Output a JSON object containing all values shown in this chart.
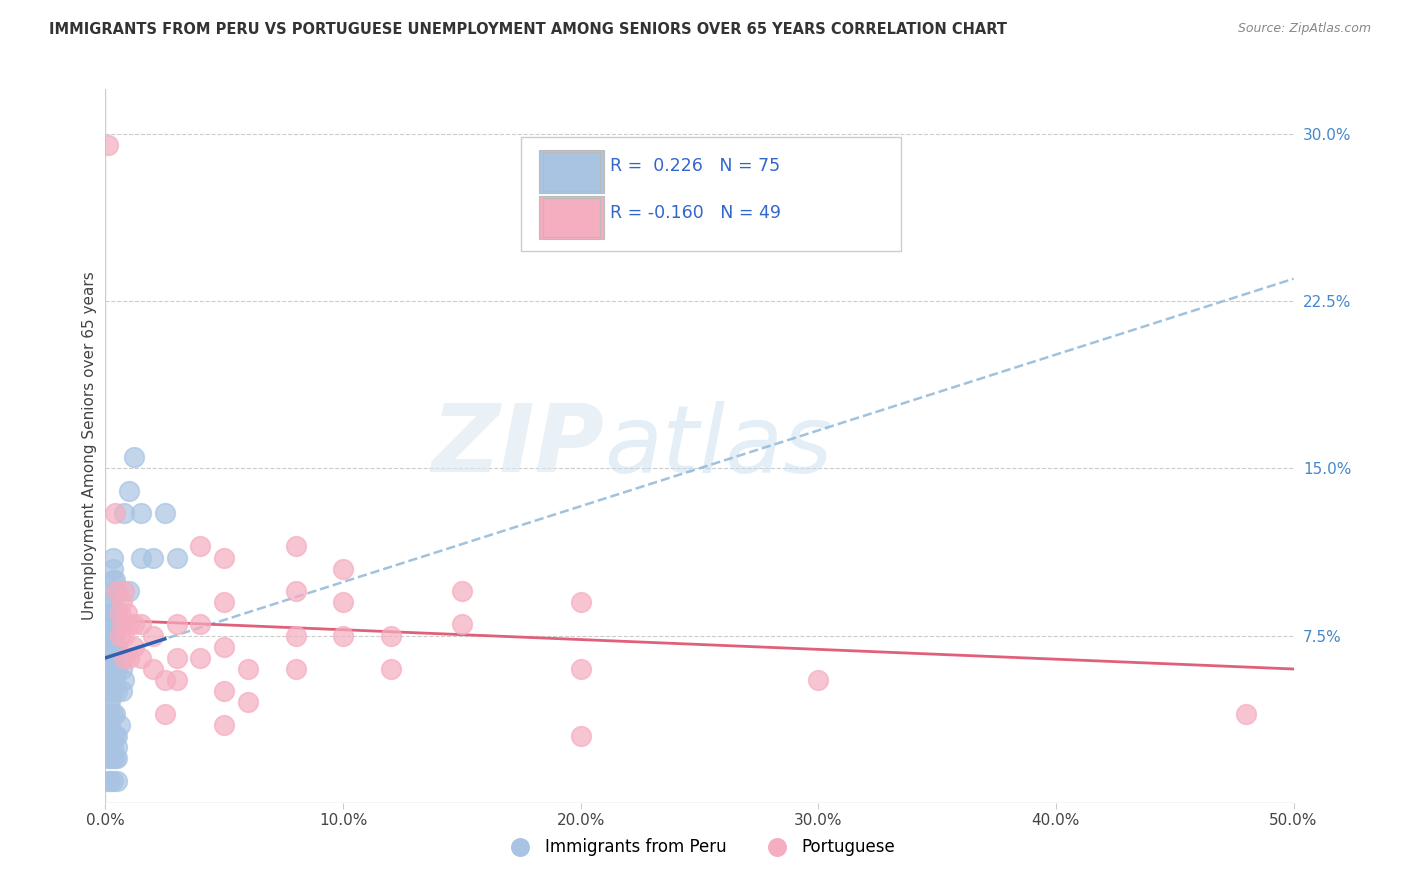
{
  "title": "IMMIGRANTS FROM PERU VS PORTUGUESE UNEMPLOYMENT AMONG SENIORS OVER 65 YEARS CORRELATION CHART",
  "source": "Source: ZipAtlas.com",
  "ylabel": "Unemployment Among Seniors over 65 years",
  "xlim": [
    0.0,
    0.5
  ],
  "ylim": [
    0.0,
    0.32
  ],
  "xtick_vals": [
    0.0,
    0.1,
    0.2,
    0.3,
    0.4,
    0.5
  ],
  "xticklabels": [
    "0.0%",
    "10.0%",
    "20.0%",
    "30.0%",
    "40.0%",
    "50.0%"
  ],
  "ytick_right_vals": [
    0.075,
    0.15,
    0.225,
    0.3
  ],
  "ytick_right_labels": [
    "7.5%",
    "15.0%",
    "22.5%",
    "30.0%"
  ],
  "grid_color": "#cccccc",
  "background_color": "#ffffff",
  "peru_color": "#a8c4e2",
  "portuguese_color": "#f5adc0",
  "peru_line_color": "#3060b0",
  "portuguese_line_color": "#e0607a",
  "peru_trendline_color": "#90b8d8",
  "peru_scatter": [
    [
      0.001,
      0.01
    ],
    [
      0.001,
      0.02
    ],
    [
      0.001,
      0.025
    ],
    [
      0.001,
      0.03
    ],
    [
      0.001,
      0.035
    ],
    [
      0.001,
      0.04
    ],
    [
      0.001,
      0.045
    ],
    [
      0.001,
      0.05
    ],
    [
      0.001,
      0.055
    ],
    [
      0.001,
      0.06
    ],
    [
      0.001,
      0.07
    ],
    [
      0.002,
      0.01
    ],
    [
      0.002,
      0.02
    ],
    [
      0.002,
      0.025
    ],
    [
      0.002,
      0.03
    ],
    [
      0.002,
      0.035
    ],
    [
      0.002,
      0.04
    ],
    [
      0.002,
      0.045
    ],
    [
      0.002,
      0.05
    ],
    [
      0.002,
      0.055
    ],
    [
      0.002,
      0.06
    ],
    [
      0.002,
      0.065
    ],
    [
      0.002,
      0.07
    ],
    [
      0.002,
      0.075
    ],
    [
      0.002,
      0.08
    ],
    [
      0.002,
      0.085
    ],
    [
      0.002,
      0.09
    ],
    [
      0.003,
      0.01
    ],
    [
      0.003,
      0.02
    ],
    [
      0.003,
      0.025
    ],
    [
      0.003,
      0.03
    ],
    [
      0.003,
      0.04
    ],
    [
      0.003,
      0.05
    ],
    [
      0.003,
      0.055
    ],
    [
      0.003,
      0.06
    ],
    [
      0.003,
      0.065
    ],
    [
      0.003,
      0.07
    ],
    [
      0.003,
      0.075
    ],
    [
      0.003,
      0.08
    ],
    [
      0.003,
      0.09
    ],
    [
      0.003,
      0.1
    ],
    [
      0.003,
      0.105
    ],
    [
      0.003,
      0.11
    ],
    [
      0.004,
      0.02
    ],
    [
      0.004,
      0.03
    ],
    [
      0.004,
      0.04
    ],
    [
      0.004,
      0.055
    ],
    [
      0.004,
      0.065
    ],
    [
      0.004,
      0.07
    ],
    [
      0.004,
      0.075
    ],
    [
      0.004,
      0.085
    ],
    [
      0.004,
      0.095
    ],
    [
      0.004,
      0.1
    ],
    [
      0.005,
      0.01
    ],
    [
      0.005,
      0.02
    ],
    [
      0.005,
      0.025
    ],
    [
      0.005,
      0.03
    ],
    [
      0.005,
      0.05
    ],
    [
      0.005,
      0.06
    ],
    [
      0.005,
      0.07
    ],
    [
      0.005,
      0.08
    ],
    [
      0.005,
      0.085
    ],
    [
      0.005,
      0.095
    ],
    [
      0.006,
      0.035
    ],
    [
      0.006,
      0.065
    ],
    [
      0.006,
      0.08
    ],
    [
      0.007,
      0.05
    ],
    [
      0.007,
      0.06
    ],
    [
      0.008,
      0.13
    ],
    [
      0.008,
      0.055
    ],
    [
      0.01,
      0.095
    ],
    [
      0.01,
      0.14
    ],
    [
      0.012,
      0.155
    ],
    [
      0.015,
      0.11
    ],
    [
      0.015,
      0.13
    ],
    [
      0.02,
      0.11
    ],
    [
      0.025,
      0.13
    ],
    [
      0.03,
      0.11
    ]
  ],
  "portuguese_scatter": [
    [
      0.001,
      0.295
    ],
    [
      0.004,
      0.13
    ],
    [
      0.005,
      0.095
    ],
    [
      0.006,
      0.085
    ],
    [
      0.006,
      0.075
    ],
    [
      0.007,
      0.09
    ],
    [
      0.007,
      0.08
    ],
    [
      0.008,
      0.095
    ],
    [
      0.008,
      0.075
    ],
    [
      0.008,
      0.065
    ],
    [
      0.009,
      0.085
    ],
    [
      0.01,
      0.08
    ],
    [
      0.01,
      0.065
    ],
    [
      0.012,
      0.08
    ],
    [
      0.012,
      0.07
    ],
    [
      0.015,
      0.08
    ],
    [
      0.015,
      0.065
    ],
    [
      0.02,
      0.075
    ],
    [
      0.02,
      0.06
    ],
    [
      0.025,
      0.055
    ],
    [
      0.025,
      0.04
    ],
    [
      0.03,
      0.08
    ],
    [
      0.03,
      0.065
    ],
    [
      0.03,
      0.055
    ],
    [
      0.04,
      0.115
    ],
    [
      0.04,
      0.08
    ],
    [
      0.04,
      0.065
    ],
    [
      0.05,
      0.11
    ],
    [
      0.05,
      0.09
    ],
    [
      0.05,
      0.07
    ],
    [
      0.05,
      0.05
    ],
    [
      0.05,
      0.035
    ],
    [
      0.06,
      0.06
    ],
    [
      0.06,
      0.045
    ],
    [
      0.08,
      0.115
    ],
    [
      0.08,
      0.095
    ],
    [
      0.08,
      0.075
    ],
    [
      0.08,
      0.06
    ],
    [
      0.1,
      0.105
    ],
    [
      0.1,
      0.09
    ],
    [
      0.1,
      0.075
    ],
    [
      0.12,
      0.075
    ],
    [
      0.12,
      0.06
    ],
    [
      0.15,
      0.095
    ],
    [
      0.15,
      0.08
    ],
    [
      0.2,
      0.09
    ],
    [
      0.2,
      0.06
    ],
    [
      0.2,
      0.03
    ],
    [
      0.3,
      0.055
    ],
    [
      0.48,
      0.04
    ]
  ],
  "peru_trend": [
    0.0,
    0.5,
    0.065,
    0.235
  ],
  "port_trend": [
    0.0,
    0.5,
    0.082,
    0.06
  ]
}
